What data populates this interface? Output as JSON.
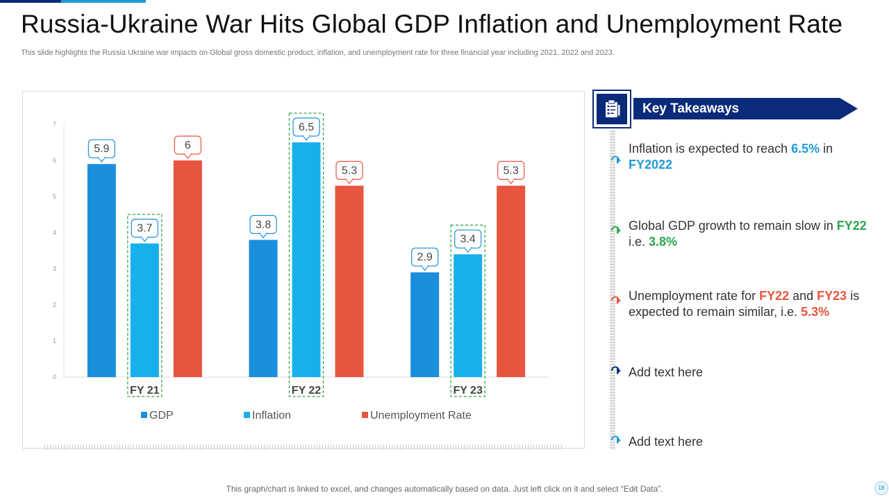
{
  "header": {
    "title": "Russia-Ukraine War Hits Global GDP Inflation and Unemployment Rate",
    "subtitle": "This slide highlights the Russia Ukraine war impacts on Global gross domestic product, inflation, and unemployment rate for three financial year including 2021, 2022 and 2023."
  },
  "colors": {
    "navy": "#0b2a7a",
    "gdp": "#1b8fdc",
    "inflation": "#18b0ec",
    "unemployment": "#e8553e",
    "highlight": "#2aa84a"
  },
  "chart_data": {
    "type": "bar",
    "categories": [
      "FY 21",
      "FY 22",
      "FY 23"
    ],
    "series": [
      {
        "name": "GDP",
        "values": [
          5.9,
          3.8,
          2.9
        ]
      },
      {
        "name": "Inflation",
        "values": [
          3.7,
          6.5,
          3.4
        ]
      },
      {
        "name": "Unemployment Rate",
        "values": [
          6,
          5.3,
          5.3
        ]
      }
    ],
    "yticks": [
      0,
      1,
      2,
      3,
      4,
      5,
      6,
      7
    ],
    "ylim": [
      0,
      7
    ],
    "legend_position": "bottom",
    "grid": false,
    "highlighted_bars": [
      {
        "category": "FY 21",
        "series": "Inflation"
      },
      {
        "category": "FY 22",
        "series": "Inflation"
      },
      {
        "category": "FY 23",
        "series": "Inflation"
      }
    ]
  },
  "takeaways": {
    "title": "Key Takeaways",
    "icon": "clipboard-icon",
    "items": [
      {
        "icon": "arrow-blue-icon",
        "p1": "Inflation is expected to reach ",
        "h1": "6.5%",
        "p2": " in ",
        "h2": "FY2022",
        "p3": ""
      },
      {
        "icon": "arrow-green-icon",
        "p1": "Global GDP growth to remain slow in ",
        "h1": "FY22",
        "p2": " i.e. ",
        "h2": "3.8%",
        "p3": ""
      },
      {
        "icon": "arrow-red-icon",
        "p1": "Unemployment rate for ",
        "h1": "FY22",
        "p2": " and ",
        "h2": "FY23",
        "p3": " is expected to remain similar, i.e. ",
        "h3": "5.3%"
      },
      {
        "icon": "arrow-navy-icon",
        "text": "Add text here"
      },
      {
        "icon": "arrow-blue-icon",
        "text": "Add text here"
      }
    ]
  },
  "footer": {
    "note": "This graph/chart is linked to excel,  and changes automatically based on data. Just left click on it and select “Edit Data”.",
    "page": "18"
  }
}
